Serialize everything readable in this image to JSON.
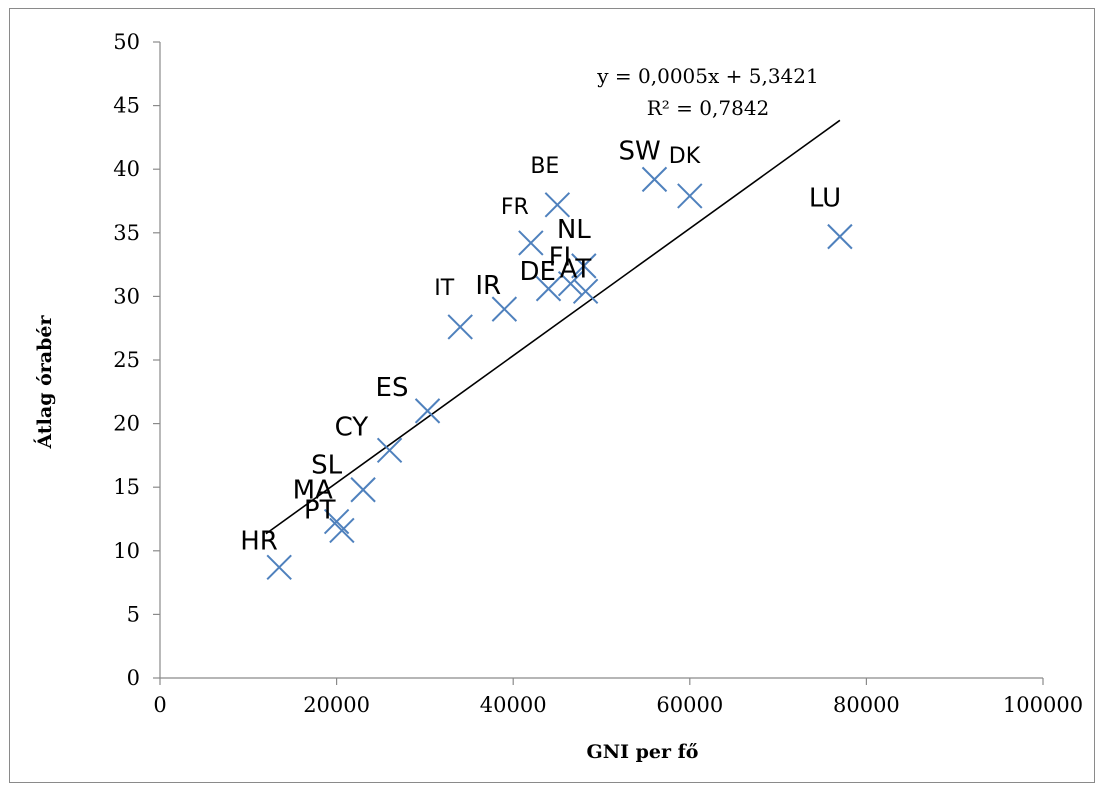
{
  "chart_data": {
    "type": "scatter",
    "title": "",
    "xlabel": "GNI per fő",
    "ylabel": "Átlag órabér",
    "xlim": [
      0,
      100000
    ],
    "ylim": [
      0,
      50
    ],
    "x_ticks": [
      "0",
      "20000",
      "40000",
      "60000",
      "80000",
      "100000"
    ],
    "y_ticks": [
      "0",
      "5",
      "10",
      "15",
      "20",
      "25",
      "30",
      "35",
      "40",
      "45",
      "50"
    ],
    "marker_color": "#4f81bd",
    "grid": false,
    "legend": "none",
    "points": [
      {
        "label": "HR",
        "x": 13500,
        "y": 8.7
      },
      {
        "label": "MA",
        "x": 20000,
        "y": 12.3
      },
      {
        "label": "PT",
        "x": 20600,
        "y": 11.6
      },
      {
        "label": "SL",
        "x": 23000,
        "y": 14.8
      },
      {
        "label": "CY",
        "x": 26000,
        "y": 17.9
      },
      {
        "label": "ES",
        "x": 30300,
        "y": 21.0
      },
      {
        "label": "IT",
        "x": 34000,
        "y": 27.6
      },
      {
        "label": "IR",
        "x": 39000,
        "y": 29.0
      },
      {
        "label": "FR",
        "x": 42000,
        "y": 34.2
      },
      {
        "label": "BE",
        "x": 45000,
        "y": 37.2
      },
      {
        "label": "DE",
        "x": 44000,
        "y": 30.6
      },
      {
        "label": "FI",
        "x": 46500,
        "y": 31.0
      },
      {
        "label": "AT",
        "x": 48200,
        "y": 30.4
      },
      {
        "label": "NL",
        "x": 48000,
        "y": 32.4
      },
      {
        "label": "SW",
        "x": 56000,
        "y": 39.2
      },
      {
        "label": "DK",
        "x": 60000,
        "y": 37.9
      },
      {
        "label": "LU",
        "x": 77000,
        "y": 34.7
      }
    ],
    "trendline": {
      "type": "linear",
      "slope": 0.0005,
      "intercept": 5.3421,
      "x_range": [
        12000,
        77000
      ],
      "equation": "y = 0,0005x + 5,3421",
      "r_squared": "R² = 0,7842"
    }
  }
}
